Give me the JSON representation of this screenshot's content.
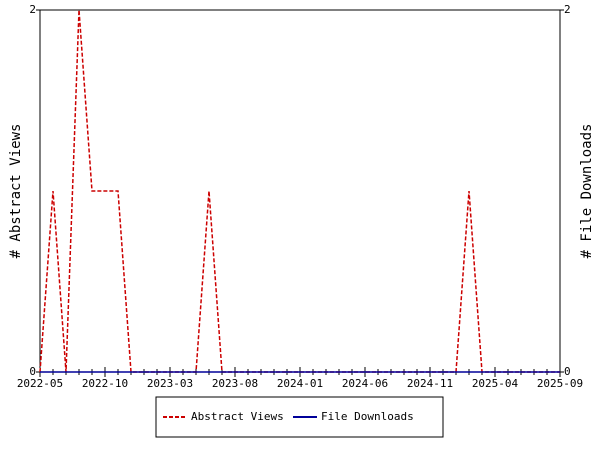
{
  "chart_data": {
    "type": "line",
    "x": [
      "2022-05",
      "2022-06",
      "2022-07",
      "2022-08",
      "2022-09",
      "2022-10",
      "2022-11",
      "2022-12",
      "2023-01",
      "2023-02",
      "2023-03",
      "2023-04",
      "2023-05",
      "2023-06",
      "2023-07",
      "2023-08",
      "2023-09",
      "2023-10",
      "2023-11",
      "2023-12",
      "2024-01",
      "2024-02",
      "2024-03",
      "2024-04",
      "2024-05",
      "2024-06",
      "2024-07",
      "2024-08",
      "2024-09",
      "2024-10",
      "2024-11",
      "2024-12",
      "2025-01",
      "2025-02",
      "2025-03",
      "2025-04",
      "2025-05",
      "2025-06",
      "2025-07",
      "2025-08",
      "2025-09"
    ],
    "xticks": [
      "2022-05",
      "2022-10",
      "2023-03",
      "2023-08",
      "2024-01",
      "2024-06",
      "2024-11",
      "2025-04",
      "2025-09"
    ],
    "ylabel": "# Abstract Views",
    "y2label": "# File Downloads",
    "ylim": [
      0,
      2
    ],
    "yticks": [
      0,
      2
    ],
    "y2lim": [
      0,
      2
    ],
    "y2ticks": [
      0,
      2
    ],
    "series": [
      {
        "name": "Abstract Views",
        "color": "#cc0000",
        "dashed": true,
        "values": [
          0,
          1,
          0,
          2,
          1,
          1,
          1,
          0,
          0,
          0,
          0,
          0,
          0,
          1,
          0,
          0,
          0,
          0,
          0,
          0,
          0,
          0,
          0,
          0,
          0,
          0,
          0,
          0,
          0,
          0,
          0,
          0,
          0,
          1,
          0,
          0,
          0,
          0,
          0,
          0,
          0
        ]
      },
      {
        "name": "File Downloads",
        "color": "#000099",
        "dashed": false,
        "axis": "y2",
        "values": [
          0,
          0,
          0,
          0,
          0,
          0,
          0,
          0,
          0,
          0,
          0,
          0,
          0,
          0,
          0,
          0,
          0,
          0,
          0,
          0,
          0,
          0,
          0,
          0,
          0,
          0,
          0,
          0,
          0,
          0,
          0,
          0,
          0,
          0,
          0,
          0,
          0,
          0,
          0,
          0,
          0
        ]
      }
    ]
  }
}
